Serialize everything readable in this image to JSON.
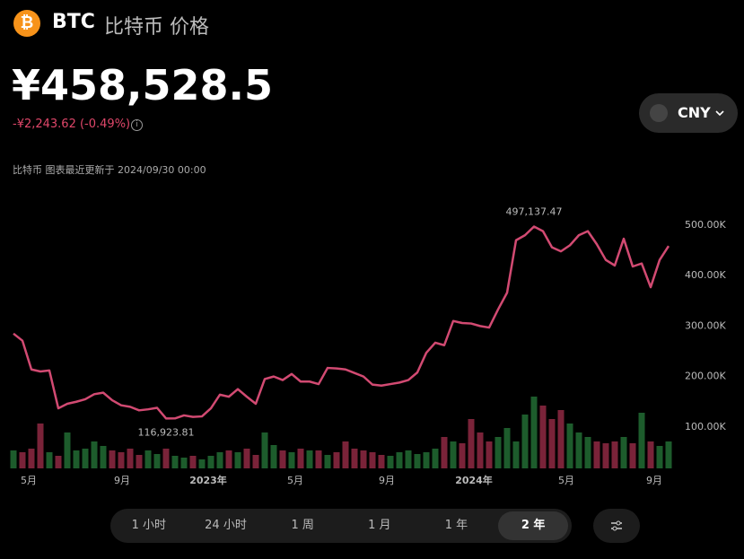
{
  "header": {
    "symbol": "BTC",
    "name": "比特币 价格",
    "icon": "₿"
  },
  "price": "¥458,528.5",
  "change": "-¥2,243.62 (-0.49%)",
  "updated": "比特币 图表最近更新于 2024/09/30 00:00",
  "currency": "CNY",
  "chart": {
    "type": "line",
    "color": "#d24a72",
    "up_color": "#1d5c2c",
    "down_color": "#7a2339",
    "values": [
      285000,
      271000,
      214000,
      210000,
      212000,
      137000,
      146000,
      150000,
      155000,
      165000,
      168000,
      153000,
      143000,
      140000,
      133000,
      135000,
      138000,
      116923.81,
      117000,
      123000,
      120000,
      121000,
      137000,
      164000,
      160000,
      175000,
      160000,
      146000,
      195000,
      200000,
      193000,
      205000,
      190000,
      190000,
      185000,
      217000,
      216000,
      214000,
      207000,
      200000,
      184000,
      182000,
      185000,
      188000,
      193000,
      208000,
      247000,
      267000,
      262000,
      310000,
      306000,
      305000,
      300000,
      297000,
      333000,
      366000,
      470000,
      480000,
      497137.47,
      488000,
      456000,
      448000,
      460000,
      480000,
      488000,
      462000,
      431000,
      420000,
      473000,
      418000,
      424000,
      377000,
      431000,
      458528.5
    ],
    "volume": [
      20,
      18,
      22,
      50,
      18,
      14,
      40,
      20,
      22,
      30,
      25,
      20,
      18,
      22,
      15,
      20,
      16,
      22,
      14,
      12,
      14,
      10,
      14,
      18,
      20,
      18,
      22,
      15,
      40,
      26,
      20,
      18,
      22,
      20,
      20,
      15,
      18,
      30,
      22,
      20,
      18,
      15,
      14,
      18,
      20,
      16,
      18,
      22,
      35,
      30,
      28,
      55,
      40,
      30,
      35,
      45,
      30,
      60,
      80,
      70,
      55,
      65,
      50,
      40,
      35,
      30,
      28,
      30,
      35,
      28,
      62,
      30,
      25,
      30
    ],
    "vlim": [
      0,
      90
    ],
    "ylim": [
      18000,
      546000
    ],
    "yticks": [
      {
        "value": 100000,
        "label": "100.00K"
      },
      {
        "value": 200000,
        "label": "200.00K"
      },
      {
        "value": 300000,
        "label": "300.00K"
      },
      {
        "value": 400000,
        "label": "400.00K"
      },
      {
        "value": 500000,
        "label": "500.00K"
      }
    ],
    "xticks": [
      {
        "value": 1.7,
        "label": "5月"
      },
      {
        "value": 12.1,
        "label": "9月"
      },
      {
        "value": 21.7,
        "label": "2023年"
      },
      {
        "value": 31.4,
        "label": "5月"
      },
      {
        "value": 41.6,
        "label": "9月"
      },
      {
        "value": 51.3,
        "label": "2024年"
      },
      {
        "value": 61.6,
        "label": "5月"
      },
      {
        "value": 71.4,
        "label": "9月"
      }
    ],
    "high_label": "497,137.47",
    "low_label": "116,923.81"
  },
  "timeframes": [
    "1 小时",
    "24 小时",
    "1 周",
    "1 月",
    "1 年",
    "2 年"
  ],
  "selected_timeframe": 5
}
